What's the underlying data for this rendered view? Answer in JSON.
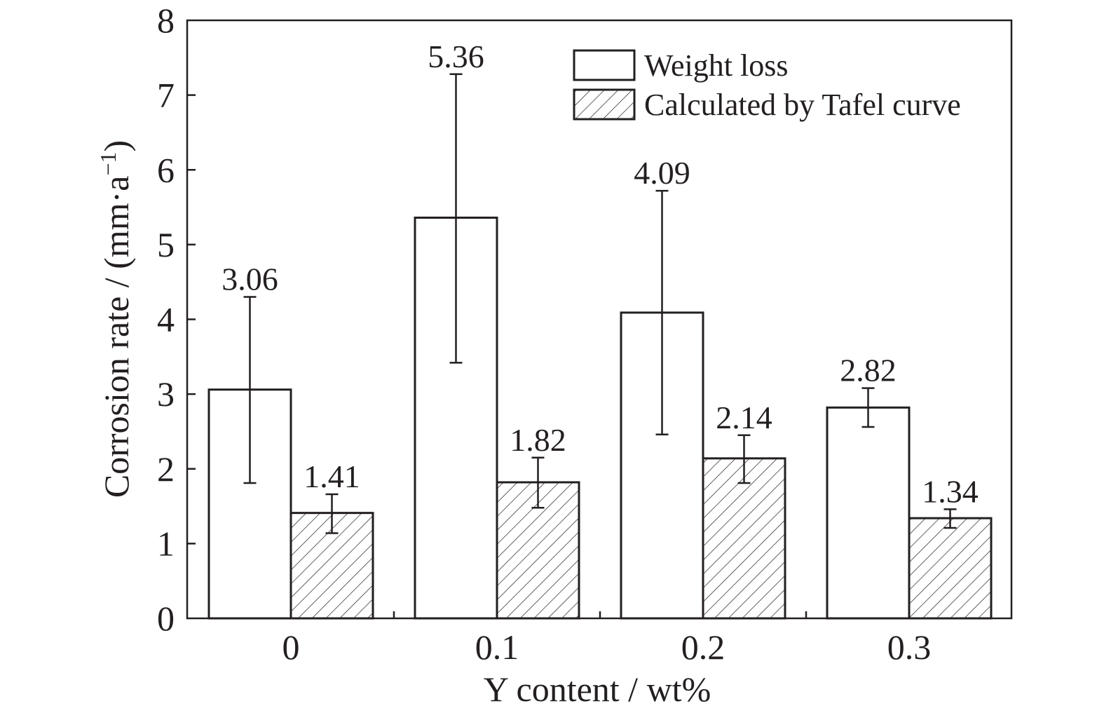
{
  "chart_data": {
    "type": "bar",
    "title": "",
    "xlabel": "Y content / wt%",
    "ylabel": {
      "main": "Corrosion rate / (mm·a",
      "superscript": "−1",
      "close": ")"
    },
    "categories": [
      "0",
      "0.1",
      "0.2",
      "0.3"
    ],
    "ylim": [
      0,
      8
    ],
    "yticks": [
      "0",
      "1",
      "2",
      "3",
      "4",
      "5",
      "6",
      "7",
      "8"
    ],
    "legend_position": "top-right",
    "grid": false,
    "series": [
      {
        "name": "Weight loss",
        "fill": "#ffffff",
        "pattern": "none",
        "values": [
          3.06,
          5.36,
          4.09,
          2.82
        ],
        "labels": [
          "3.06",
          "5.36",
          "4.09",
          "2.82"
        ],
        "error_low": [
          1.81,
          3.42,
          2.46,
          2.56
        ],
        "error_high": [
          4.3,
          7.28,
          5.72,
          3.08
        ]
      },
      {
        "name": "Calculated by Tafel curve",
        "fill": "#ffffff",
        "pattern": "diagonal-hatch",
        "values": [
          1.41,
          1.82,
          2.14,
          1.34
        ],
        "labels": [
          "1.41",
          "1.82",
          "2.14",
          "1.34"
        ],
        "error_low": [
          1.14,
          1.48,
          1.81,
          1.21
        ],
        "error_high": [
          1.66,
          2.15,
          2.45,
          1.46
        ]
      }
    ],
    "colors": {
      "ink": "#231f20",
      "background": "#ffffff"
    }
  }
}
